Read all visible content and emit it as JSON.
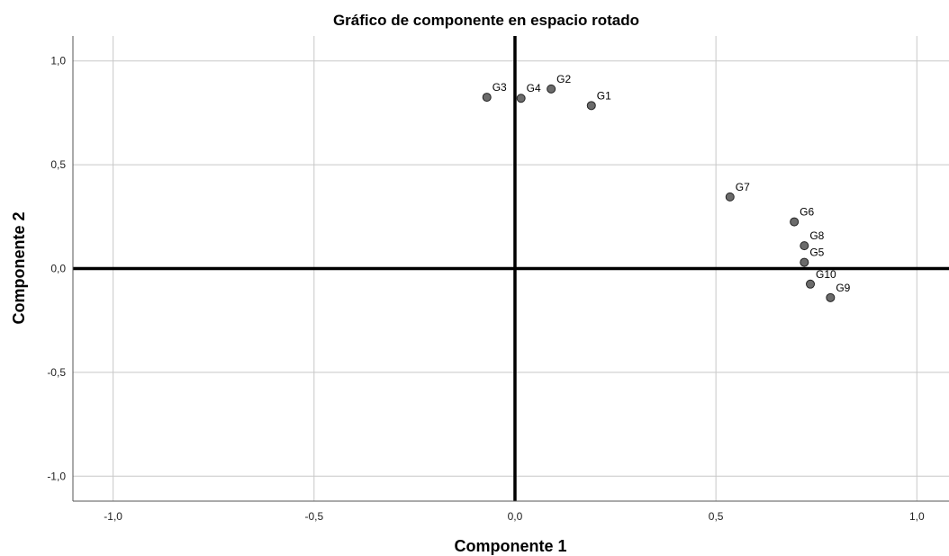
{
  "chart_data": {
    "type": "scatter",
    "title": "Gráfico de componente en espacio rotado",
    "xlabel": "Componente 1",
    "ylabel": "Componente 2",
    "xlim": [
      -1.1,
      1.08
    ],
    "ylim": [
      -1.12,
      1.12
    ],
    "xticks": [
      -1.0,
      -0.5,
      0.0,
      0.5,
      1.0
    ],
    "yticks": [
      -1.0,
      -0.5,
      0.0,
      0.5,
      1.0
    ],
    "xtick_labels": [
      "-1,0",
      "-0,5",
      "0,0",
      "0,5",
      "1,0"
    ],
    "ytick_labels": [
      "-1,0",
      "-0,5",
      "0,0",
      "0,5",
      "1,0"
    ],
    "grid": true,
    "zero_lines": true,
    "point_color": "#6b6b6b",
    "points": [
      {
        "label": "G1",
        "x": 0.19,
        "y": 0.785
      },
      {
        "label": "G2",
        "x": 0.09,
        "y": 0.865
      },
      {
        "label": "G3",
        "x": -0.07,
        "y": 0.825
      },
      {
        "label": "G4",
        "x": 0.015,
        "y": 0.82
      },
      {
        "label": "G5",
        "x": 0.72,
        "y": 0.03
      },
      {
        "label": "G6",
        "x": 0.695,
        "y": 0.225
      },
      {
        "label": "G7",
        "x": 0.535,
        "y": 0.345
      },
      {
        "label": "G8",
        "x": 0.72,
        "y": 0.11
      },
      {
        "label": "G9",
        "x": 0.785,
        "y": -0.14
      },
      {
        "label": "G10",
        "x": 0.735,
        "y": -0.075
      }
    ]
  }
}
